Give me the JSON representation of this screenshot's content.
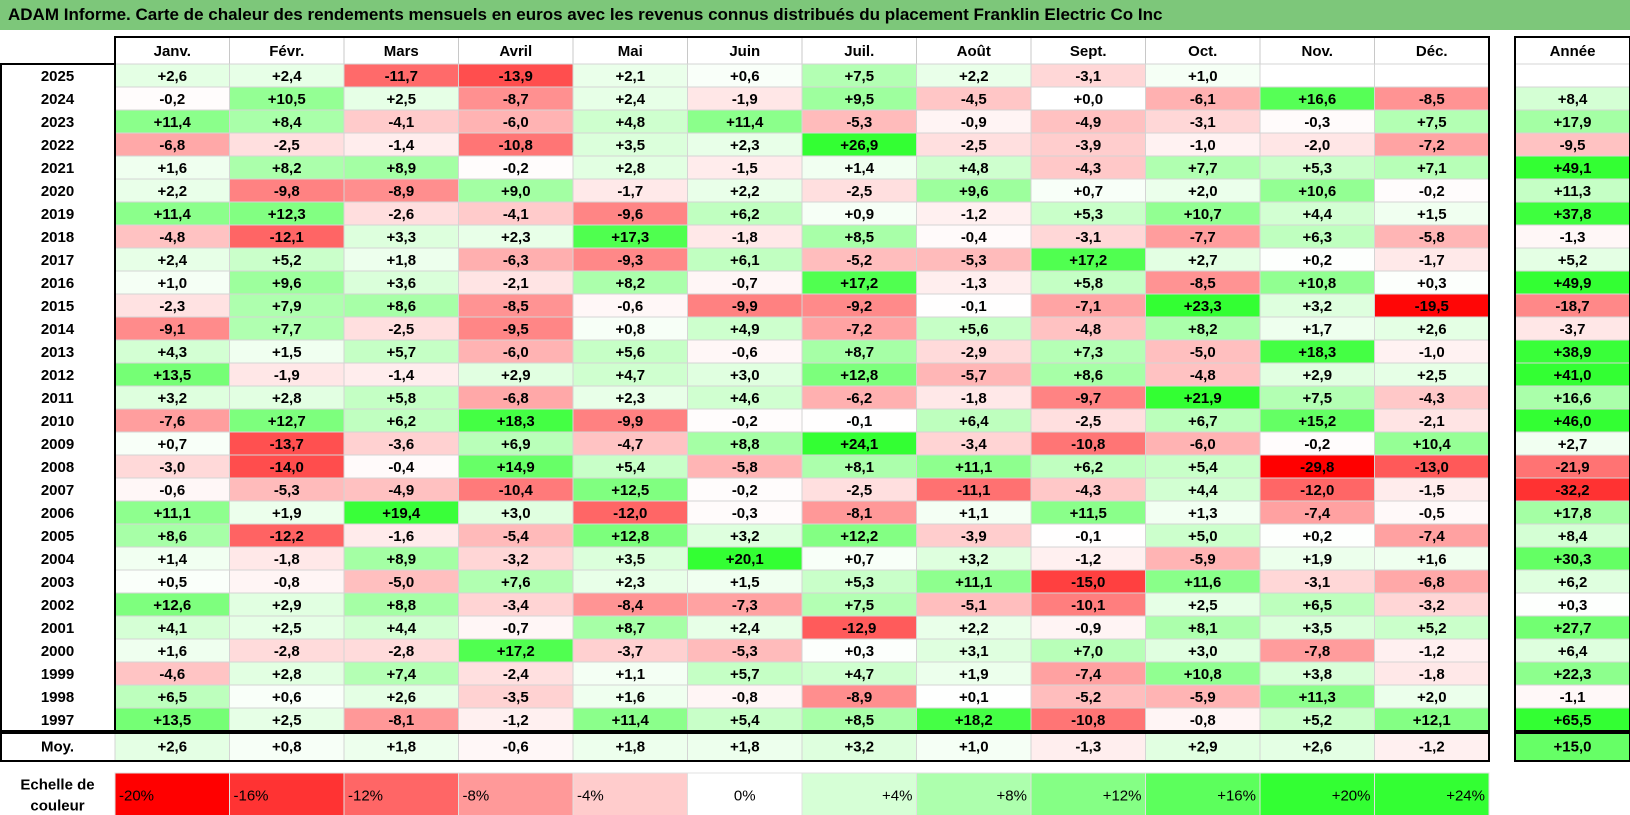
{
  "chart_data": {
    "type": "heatmap",
    "title": "ADAM Informe. Carte de chaleur des rendements mensuels en euros avec les revenus connus distribués du placement Franklin Electric Co Inc",
    "months": [
      "Janv.",
      "Févr.",
      "Mars",
      "Avril",
      "Mai",
      "Juin",
      "Juil.",
      "Août",
      "Sept.",
      "Oct.",
      "Nov.",
      "Déc."
    ],
    "year_header": "Année",
    "rows": [
      {
        "year": "2025",
        "values": [
          "+2,6",
          "+2,4",
          "-11,7",
          "-13,9",
          "+2,1",
          "+0,6",
          "+7,5",
          "+2,2",
          "-3,1",
          "+1,0",
          "",
          ""
        ],
        "annual": ""
      },
      {
        "year": "2024",
        "values": [
          "-0,2",
          "+10,5",
          "+2,5",
          "-8,7",
          "+2,4",
          "-1,9",
          "+9,5",
          "-4,5",
          "+0,0",
          "-6,1",
          "+16,6",
          "-8,5"
        ],
        "annual": "+8,4"
      },
      {
        "year": "2023",
        "values": [
          "+11,4",
          "+8,4",
          "-4,1",
          "-6,0",
          "+4,8",
          "+11,4",
          "-5,3",
          "-0,9",
          "-4,9",
          "-3,1",
          "-0,3",
          "+7,5"
        ],
        "annual": "+17,9"
      },
      {
        "year": "2022",
        "values": [
          "-6,8",
          "-2,5",
          "-1,4",
          "-10,8",
          "+3,5",
          "+2,3",
          "+26,9",
          "-2,5",
          "-3,9",
          "-1,0",
          "-2,0",
          "-7,2"
        ],
        "annual": "-9,5"
      },
      {
        "year": "2021",
        "values": [
          "+1,6",
          "+8,2",
          "+8,9",
          "-0,2",
          "+2,8",
          "-1,5",
          "+1,4",
          "+4,8",
          "-4,3",
          "+7,7",
          "+5,3",
          "+7,1"
        ],
        "annual": "+49,1"
      },
      {
        "year": "2020",
        "values": [
          "+2,2",
          "-9,8",
          "-8,9",
          "+9,0",
          "-1,7",
          "+2,2",
          "-2,5",
          "+9,6",
          "+0,7",
          "+2,0",
          "+10,6",
          "-0,2"
        ],
        "annual": "+11,3"
      },
      {
        "year": "2019",
        "values": [
          "+11,4",
          "+12,3",
          "-2,6",
          "-4,1",
          "-9,6",
          "+6,2",
          "+0,9",
          "-1,2",
          "+5,3",
          "+10,7",
          "+4,4",
          "+1,5"
        ],
        "annual": "+37,8"
      },
      {
        "year": "2018",
        "values": [
          "-4,8",
          "-12,1",
          "+3,3",
          "+2,3",
          "+17,3",
          "-1,8",
          "+8,5",
          "-0,4",
          "-3,1",
          "-7,7",
          "+6,3",
          "-5,8"
        ],
        "annual": "-1,3"
      },
      {
        "year": "2017",
        "values": [
          "+2,4",
          "+5,2",
          "+1,8",
          "-6,3",
          "-9,3",
          "+6,1",
          "-5,2",
          "-5,3",
          "+17,2",
          "+2,7",
          "+0,2",
          "-1,7"
        ],
        "annual": "+5,2"
      },
      {
        "year": "2016",
        "values": [
          "+1,0",
          "+9,6",
          "+3,6",
          "-2,1",
          "+8,2",
          "-0,7",
          "+17,2",
          "-1,3",
          "+5,8",
          "-8,5",
          "+10,8",
          "+0,3"
        ],
        "annual": "+49,9"
      },
      {
        "year": "2015",
        "values": [
          "-2,3",
          "+7,9",
          "+8,6",
          "-8,5",
          "-0,6",
          "-9,9",
          "-9,2",
          "-0,1",
          "-7,1",
          "+23,3",
          "+3,2",
          "-19,5"
        ],
        "annual": "-18,7"
      },
      {
        "year": "2014",
        "values": [
          "-9,1",
          "+7,7",
          "-2,5",
          "-9,5",
          "+0,8",
          "+4,9",
          "-7,2",
          "+5,6",
          "-4,8",
          "+8,2",
          "+1,7",
          "+2,6"
        ],
        "annual": "-3,7"
      },
      {
        "year": "2013",
        "values": [
          "+4,3",
          "+1,5",
          "+5,7",
          "-6,0",
          "+5,6",
          "-0,6",
          "+8,7",
          "-2,9",
          "+7,3",
          "-5,0",
          "+18,3",
          "-1,0"
        ],
        "annual": "+38,9"
      },
      {
        "year": "2012",
        "values": [
          "+13,5",
          "-1,9",
          "-1,4",
          "+2,9",
          "+4,7",
          "+3,0",
          "+12,8",
          "-5,7",
          "+8,6",
          "-4,8",
          "+2,9",
          "+2,5"
        ],
        "annual": "+41,0"
      },
      {
        "year": "2011",
        "values": [
          "+3,2",
          "+2,8",
          "+5,8",
          "-6,8",
          "+2,3",
          "+4,6",
          "-6,2",
          "-1,8",
          "-9,7",
          "+21,9",
          "+7,5",
          "-4,3"
        ],
        "annual": "+16,6"
      },
      {
        "year": "2010",
        "values": [
          "-7,6",
          "+12,7",
          "+6,2",
          "+18,3",
          "-9,9",
          "-0,2",
          "-0,1",
          "+6,4",
          "-2,5",
          "+6,7",
          "+15,2",
          "-2,1"
        ],
        "annual": "+46,0"
      },
      {
        "year": "2009",
        "values": [
          "+0,7",
          "-13,7",
          "-3,6",
          "+6,9",
          "-4,7",
          "+8,8",
          "+24,1",
          "-3,4",
          "-10,8",
          "-6,0",
          "-0,2",
          "+10,4"
        ],
        "annual": "+2,7"
      },
      {
        "year": "2008",
        "values": [
          "-3,0",
          "-14,0",
          "-0,4",
          "+14,9",
          "+5,4",
          "-5,8",
          "+8,1",
          "+11,1",
          "+6,2",
          "+5,4",
          "-29,8",
          "-13,0"
        ],
        "annual": "-21,9"
      },
      {
        "year": "2007",
        "values": [
          "-0,6",
          "-5,3",
          "-4,9",
          "-10,4",
          "+12,5",
          "-0,2",
          "-2,5",
          "-11,1",
          "-4,3",
          "+4,4",
          "-12,0",
          "-1,5"
        ],
        "annual": "-32,2"
      },
      {
        "year": "2006",
        "values": [
          "+11,1",
          "+1,9",
          "+19,4",
          "+3,0",
          "-12,0",
          "-0,3",
          "-8,1",
          "+1,1",
          "+11,5",
          "+1,3",
          "-7,4",
          "-0,5"
        ],
        "annual": "+17,8"
      },
      {
        "year": "2005",
        "values": [
          "+8,6",
          "-12,2",
          "-1,6",
          "-5,4",
          "+12,8",
          "+3,2",
          "+12,2",
          "-3,9",
          "-0,1",
          "+5,0",
          "+0,2",
          "-7,4"
        ],
        "annual": "+8,4"
      },
      {
        "year": "2004",
        "values": [
          "+1,4",
          "-1,8",
          "+8,9",
          "-3,2",
          "+3,5",
          "+20,1",
          "+0,7",
          "+3,2",
          "-1,2",
          "-5,9",
          "+1,9",
          "+1,6"
        ],
        "annual": "+30,3"
      },
      {
        "year": "2003",
        "values": [
          "+0,5",
          "-0,8",
          "-5,0",
          "+7,6",
          "+2,3",
          "+1,5",
          "+5,3",
          "+11,1",
          "-15,0",
          "+11,6",
          "-3,1",
          "-6,8"
        ],
        "annual": "+6,2"
      },
      {
        "year": "2002",
        "values": [
          "+12,6",
          "+2,9",
          "+8,8",
          "-3,4",
          "-8,4",
          "-7,3",
          "+7,5",
          "-5,1",
          "-10,1",
          "+2,5",
          "+6,5",
          "-3,2"
        ],
        "annual": "+0,3"
      },
      {
        "year": "2001",
        "values": [
          "+4,1",
          "+2,5",
          "+4,4",
          "-0,7",
          "+8,7",
          "+2,4",
          "-12,9",
          "+2,2",
          "-0,9",
          "+8,1",
          "+3,5",
          "+5,2"
        ],
        "annual": "+27,7"
      },
      {
        "year": "2000",
        "values": [
          "+1,6",
          "-2,8",
          "-2,8",
          "+17,2",
          "-3,7",
          "-5,3",
          "+0,3",
          "+3,1",
          "+7,0",
          "+3,0",
          "-7,8",
          "-1,2"
        ],
        "annual": "+6,4"
      },
      {
        "year": "1999",
        "values": [
          "-4,6",
          "+2,8",
          "+7,4",
          "-2,4",
          "+1,1",
          "+5,7",
          "+4,7",
          "+1,9",
          "-7,4",
          "+10,8",
          "+3,8",
          "-1,8"
        ],
        "annual": "+22,3"
      },
      {
        "year": "1998",
        "values": [
          "+6,5",
          "+0,6",
          "+2,6",
          "-3,5",
          "+1,6",
          "-0,8",
          "-8,9",
          "+0,1",
          "-5,2",
          "-5,9",
          "+11,3",
          "+2,0"
        ],
        "annual": "-1,1"
      },
      {
        "year": "1997",
        "values": [
          "+13,5",
          "+2,5",
          "-8,1",
          "-1,2",
          "+11,4",
          "+5,4",
          "+8,5",
          "+18,2",
          "-10,8",
          "-0,8",
          "+5,2",
          "+12,1"
        ],
        "annual": "+65,5"
      }
    ],
    "average": {
      "label": "Moy.",
      "values": [
        "+2,6",
        "+0,8",
        "+1,8",
        "-0,6",
        "+1,8",
        "+1,8",
        "+3,2",
        "+1,0",
        "-1,3",
        "+2,9",
        "+2,6",
        "-1,2"
      ],
      "annual": "+15,0"
    },
    "scale": {
      "label_line1": "Echelle de",
      "label_line2": "couleur",
      "steps": [
        {
          "label": "-20%",
          "value": -20
        },
        {
          "label": "-16%",
          "value": -16
        },
        {
          "label": "-12%",
          "value": -12
        },
        {
          "label": "-8%",
          "value": -8
        },
        {
          "label": "-4%",
          "value": -4
        },
        {
          "label": "0%",
          "value": 0
        },
        {
          "label": "+4%",
          "value": 4
        },
        {
          "label": "+8%",
          "value": 8
        },
        {
          "label": "+12%",
          "value": 12
        },
        {
          "label": "+16%",
          "value": 16
        },
        {
          "label": "+20%",
          "value": 20
        },
        {
          "label": "+24%",
          "value": 24
        }
      ]
    },
    "colors": {
      "negative_max": "#ff0000",
      "neutral": "#ffffff",
      "positive_max": "#33ff33",
      "title_bar": "#7dc77a"
    }
  }
}
